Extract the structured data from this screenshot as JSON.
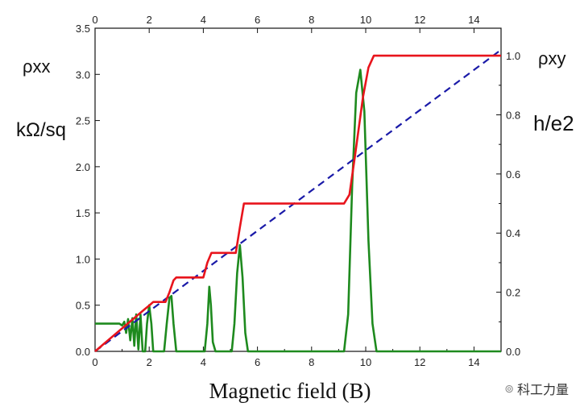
{
  "chart_data": {
    "type": "line",
    "xlabel": "Magnetic field (B)",
    "x_range": [
      0,
      15
    ],
    "x_ticks": [
      0,
      2,
      4,
      6,
      8,
      10,
      12,
      14
    ],
    "x_tick_labels": [
      "0",
      "2",
      "4",
      "6",
      "8",
      "10",
      "12",
      "14"
    ],
    "left_axis": {
      "label_top": "ρxx",
      "label_unit": "kΩ/sq",
      "range": [
        0,
        3.5
      ],
      "ticks": [
        0,
        0.5,
        1.0,
        1.5,
        2.0,
        2.5,
        3.0,
        3.5
      ],
      "tick_labels": [
        "0.0",
        "0.5",
        "1.0",
        "1.5",
        "2.0",
        "2.5",
        "3.0",
        "3.5"
      ]
    },
    "right_axis": {
      "label_top": "ρxy",
      "label_unit": "h/e2",
      "range": [
        0,
        1.093
      ],
      "ticks": [
        0,
        0.2,
        0.4,
        0.6,
        0.8,
        1.0
      ],
      "tick_labels": [
        "0.0",
        "0.2",
        "0.4",
        "0.6",
        "0.8",
        "1.0"
      ]
    },
    "grid": false,
    "series": [
      {
        "name": "rho_xy (Hall)",
        "axis": "right",
        "color": "#e8141c",
        "style": "solid",
        "x": [
          0,
          1.8,
          2.0,
          2.15,
          2.6,
          2.75,
          2.9,
          3.0,
          4.0,
          4.15,
          4.3,
          5.2,
          5.35,
          5.5,
          9.2,
          9.4,
          9.6,
          9.9,
          10.1,
          10.3,
          15
        ],
        "y": [
          0,
          0.14,
          0.155,
          0.167,
          0.167,
          0.2,
          0.24,
          0.25,
          0.25,
          0.3,
          0.333,
          0.333,
          0.42,
          0.5,
          0.5,
          0.53,
          0.66,
          0.86,
          0.96,
          1.0,
          1.0
        ]
      },
      {
        "name": "classical Hall line",
        "axis": "right",
        "color": "#1a1aa8",
        "style": "dashed",
        "x": [
          0,
          15
        ],
        "y": [
          0,
          1.02
        ]
      },
      {
        "name": "rho_xx",
        "axis": "left",
        "color": "#1e8a1e",
        "style": "solid",
        "x": [
          0,
          0.9,
          1.0,
          1.08,
          1.15,
          1.22,
          1.3,
          1.38,
          1.45,
          1.52,
          1.6,
          1.68,
          1.76,
          1.85,
          1.92,
          2.0,
          2.08,
          2.15,
          2.25,
          2.55,
          2.65,
          2.75,
          2.82,
          2.9,
          3.0,
          3.1,
          4.05,
          4.15,
          4.22,
          4.28,
          4.35,
          4.45,
          5.05,
          5.15,
          5.25,
          5.35,
          5.45,
          5.55,
          5.65,
          9.2,
          9.35,
          9.5,
          9.65,
          9.8,
          9.95,
          10.1,
          10.25,
          10.4,
          15
        ],
        "y": [
          0.3,
          0.3,
          0.28,
          0.32,
          0.2,
          0.35,
          0.12,
          0.36,
          0.06,
          0.4,
          0.02,
          0.4,
          0.0,
          0.0,
          0.3,
          0.5,
          0.3,
          0.0,
          0.0,
          0.0,
          0.3,
          0.58,
          0.6,
          0.3,
          0.0,
          0.0,
          0.0,
          0.3,
          0.7,
          0.5,
          0.1,
          0.0,
          0.0,
          0.3,
          0.85,
          1.15,
          0.8,
          0.2,
          0.0,
          0.0,
          0.4,
          1.8,
          2.8,
          3.05,
          2.6,
          1.2,
          0.3,
          0.0,
          0.0
        ]
      }
    ]
  },
  "watermark": {
    "text": "科工力量"
  }
}
